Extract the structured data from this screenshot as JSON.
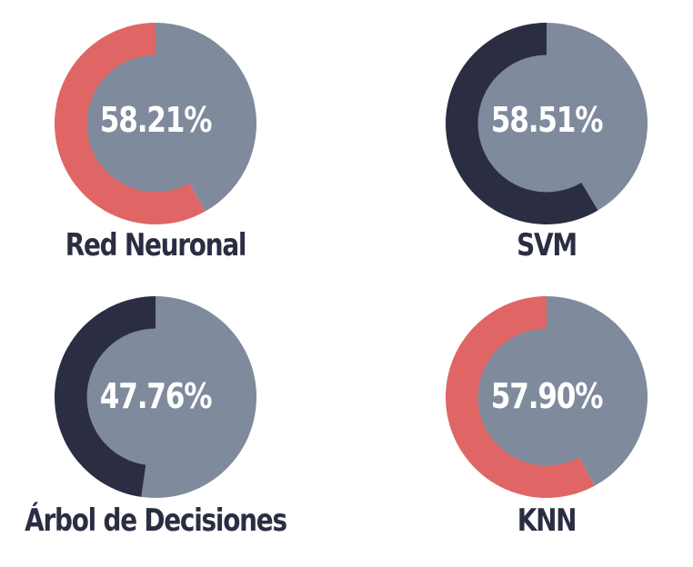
{
  "chart_data": {
    "type": "pie",
    "title": "",
    "charts": [
      {
        "name": "Red Neuronal",
        "value": 58.21,
        "value_label": "58.21%",
        "color": "#e06666"
      },
      {
        "name": "SVM",
        "value": 58.51,
        "value_label": "58.51%",
        "color": "#2b2d42"
      },
      {
        "name": "Árbol de Decisiones",
        "value": 47.76,
        "value_label": "47.76%",
        "color": "#2b2d42"
      },
      {
        "name": "KNN",
        "value": 57.9,
        "value_label": "57.90%",
        "color": "#e06666"
      }
    ],
    "remainder_color": "#7f8a9c"
  },
  "colors": {
    "label_text": "#2b2d42",
    "value_text": "#ffffff"
  }
}
